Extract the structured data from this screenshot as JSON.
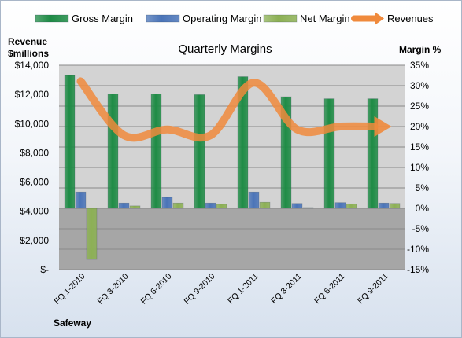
{
  "chart_data": {
    "type": "bar",
    "title": "Quarterly Margins",
    "footer": "Safeway",
    "y_left_label_line1": "Revenue",
    "y_left_label_line2": "$millions",
    "y_right_label": "Margin %",
    "categories": [
      "FQ 1-2010",
      "FQ 3-2010",
      "FQ 6-2010",
      "FQ 9-2010",
      "FQ 1-2011",
      "FQ 3-2011",
      "FQ 6-2011",
      "FQ 9-2011"
    ],
    "left_axis": {
      "range": [
        0,
        14000
      ],
      "ticks": [
        0,
        2000,
        4000,
        6000,
        8000,
        10000,
        12000,
        14000
      ],
      "tick_labels": [
        "$-",
        "$2,000",
        "$4,000",
        "$6,000",
        "$8,000",
        "$10,000",
        "$12,000",
        "$14,000"
      ]
    },
    "right_axis": {
      "range": [
        -15,
        35
      ],
      "ticks": [
        -15,
        -10,
        -5,
        0,
        5,
        10,
        15,
        20,
        25,
        30,
        35
      ],
      "tick_labels": [
        "-15%",
        "-10%",
        "-5%",
        "0%",
        "5%",
        "10%",
        "15%",
        "20%",
        "25%",
        "30%",
        "35%"
      ]
    },
    "series": [
      {
        "name": "Gross Margin",
        "axis": "right",
        "kind": "bar",
        "color": "#1e8b45",
        "values": [
          32.5,
          28.0,
          28.0,
          27.8,
          32.2,
          27.3,
          26.8,
          26.8
        ]
      },
      {
        "name": "Operating Margin",
        "axis": "right",
        "kind": "bar",
        "color": "#4a74b8",
        "values": [
          4.0,
          1.3,
          2.7,
          1.3,
          4.0,
          1.2,
          1.4,
          1.3
        ]
      },
      {
        "name": "Net Margin",
        "axis": "right",
        "kind": "bar",
        "color": "#8cb054",
        "values": [
          -12.5,
          0.6,
          1.3,
          1.0,
          1.5,
          0.2,
          1.1,
          1.2
        ]
      },
      {
        "name": "Revenues",
        "axis": "left",
        "kind": "line",
        "color": "#f08a3c",
        "values": [
          12900,
          9200,
          9600,
          9200,
          12800,
          9600,
          9800,
          9800
        ]
      }
    ],
    "legend_position": "top",
    "grid": "horizontal",
    "plot_background": {
      "above_zero": "#d3d3d3",
      "below_zero": "#a6a6a6"
    }
  }
}
